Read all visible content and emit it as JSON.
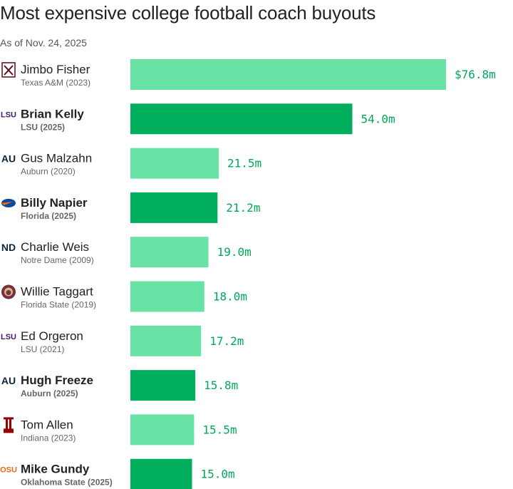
{
  "chart_data": {
    "type": "bar",
    "orientation": "horizontal",
    "title": "Most expensive college football coach buyouts",
    "subtitle": "As of Nov. 24, 2025",
    "xlim": [
      0,
      76.8
    ],
    "grid": false,
    "legend": "none",
    "colors": {
      "highlight": "#00ae5b",
      "default": "#68e3a5"
    },
    "categories": [
      "Jimbo Fisher",
      "Brian Kelly",
      "Gus Malzahn",
      "Billy Napier",
      "Charlie Weis",
      "Willie Taggart",
      "Ed Orgeron",
      "Hugh Freeze",
      "Tom Allen",
      "Mike Gundy"
    ],
    "values": [
      76.8,
      54.0,
      21.5,
      21.2,
      19.0,
      18.0,
      17.2,
      15.8,
      15.5,
      15.0
    ],
    "value_labels": [
      "$76.8m",
      "54.0m",
      "21.5m",
      "21.2m",
      "19.0m",
      "18.0m",
      "17.2m",
      "15.8m",
      "15.5m",
      "15.0m"
    ],
    "schools": [
      "Texas A&M (2023)",
      "LSU (2025)",
      "Auburn (2020)",
      "Florida (2025)",
      "Notre Dame (2009)",
      "Florida State (2019)",
      "LSU (2021)",
      "Auburn (2025)",
      "Indiana (2023)",
      "Oklahoma State (2025)"
    ],
    "highlighted": [
      false,
      true,
      false,
      true,
      false,
      false,
      false,
      true,
      false,
      true
    ],
    "logos": [
      {
        "icon": "texas-am-logo-icon",
        "text": "",
        "color": "#5a0b14"
      },
      {
        "icon": "lsu-logo-icon",
        "text": "LSU",
        "color": "#46166b"
      },
      {
        "icon": "auburn-logo-icon",
        "text": "AU",
        "color": "#0c2340"
      },
      {
        "icon": "florida-logo-icon",
        "text": "",
        "color": "#0b4a9a"
      },
      {
        "icon": "notre-dame-logo-icon",
        "text": "ND",
        "color": "#0c2340"
      },
      {
        "icon": "florida-state-logo-icon",
        "text": "",
        "color": "#782f40"
      },
      {
        "icon": "lsu-logo-icon",
        "text": "LSU",
        "color": "#46166b"
      },
      {
        "icon": "auburn-logo-icon",
        "text": "AU",
        "color": "#0c2340"
      },
      {
        "icon": "indiana-logo-icon",
        "text": "",
        "color": "#990000"
      },
      {
        "icon": "oklahoma-state-logo-icon",
        "text": "OSU",
        "color": "#e86a17"
      }
    ]
  }
}
